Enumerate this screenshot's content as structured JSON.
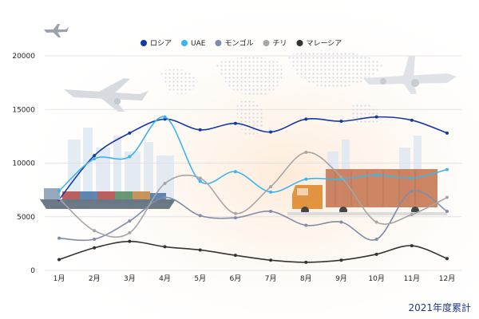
{
  "colors": {
    "russia": "#1339a8",
    "uae": "#3cb4f0",
    "mongolia": "#7f8cad",
    "chile": "#a6a6a6",
    "malaysia": "#333333"
  },
  "icons": [
    "airplane-icon",
    "cargo-ship-icon",
    "container-truck-icon",
    "world-map-icon",
    "city-skyline-icon"
  ],
  "footer_note": "2021年度累計",
  "chart_data": {
    "type": "line",
    "title": "",
    "xlabel": "",
    "ylabel": "",
    "categories": [
      "1月",
      "2月",
      "3月",
      "4月",
      "5月",
      "6月",
      "7月",
      "8月",
      "9月",
      "10月",
      "11月",
      "12月"
    ],
    "ylim": [
      0,
      20000
    ],
    "yticks": [
      0,
      5000,
      10000,
      15000,
      20000
    ],
    "ytick_labels": [
      "0",
      "5000",
      "10000",
      "15000",
      "20000"
    ],
    "grid": true,
    "legend_position": "top-center",
    "smooth": true,
    "series": [
      {
        "name": "ロシア",
        "color_key": "russia",
        "values": [
          6600,
          10700,
          12800,
          14100,
          13100,
          13700,
          12900,
          14100,
          13900,
          14300,
          14000,
          12800
        ]
      },
      {
        "name": "UAE",
        "color_key": "uae",
        "values": [
          7400,
          10400,
          10600,
          14300,
          8300,
          9200,
          7300,
          8500,
          8500,
          8900,
          8600,
          9400
        ]
      },
      {
        "name": "モンゴル",
        "color_key": "mongolia",
        "values": [
          3000,
          2900,
          4600,
          6800,
          5100,
          4900,
          5500,
          4200,
          4500,
          2900,
          7400,
          5500
        ]
      },
      {
        "name": "チリ",
        "color_key": "chile",
        "values": [
          6700,
          3700,
          3500,
          8100,
          8600,
          5300,
          7800,
          11000,
          8700,
          4500,
          5200,
          6800
        ]
      },
      {
        "name": "マレーシア",
        "color_key": "malaysia",
        "values": [
          1000,
          2100,
          2700,
          2200,
          1900,
          1400,
          950,
          750,
          950,
          1500,
          2300,
          1100
        ]
      }
    ]
  }
}
